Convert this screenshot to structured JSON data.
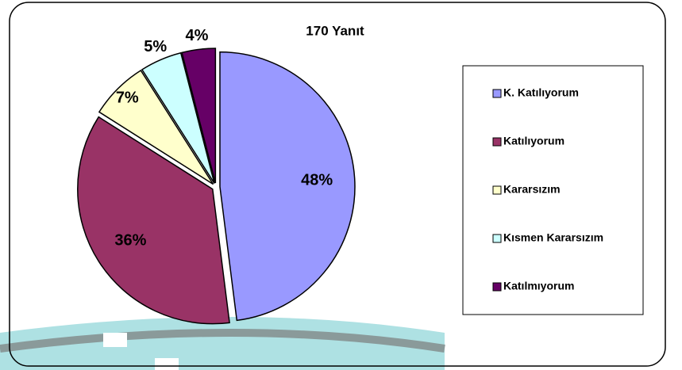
{
  "chart_data": {
    "type": "pie",
    "title": "170 Yanıt",
    "categories": [
      "K. Katılıyorum",
      "Katılıyorum",
      "Kararsızım",
      "Kısmen Kararsızım",
      "Katılmıyorum"
    ],
    "values": [
      48,
      36,
      7,
      5,
      4
    ],
    "value_labels": [
      "48%",
      "36%",
      "7%",
      "5%",
      "4%"
    ],
    "colors": [
      "#9999ff",
      "#993366",
      "#ffffcc",
      "#ccffff",
      "#660066"
    ],
    "legend": "right"
  }
}
